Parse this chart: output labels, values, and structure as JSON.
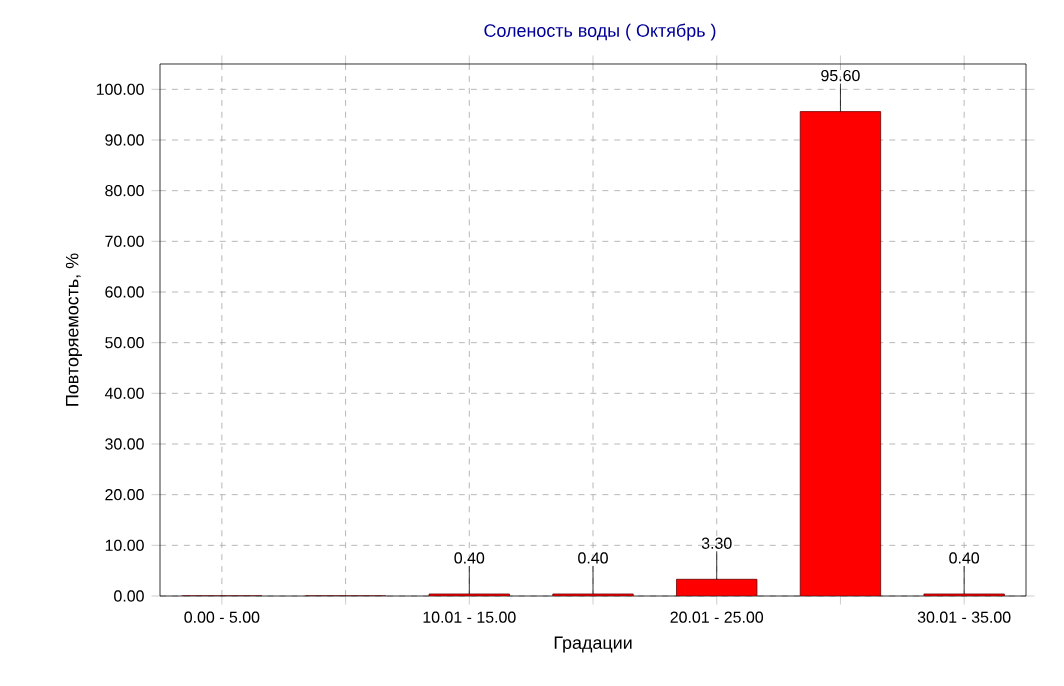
{
  "chart_data": {
    "type": "bar",
    "title": "Соленость воды    ( Октябрь )",
    "xlabel": "Градации",
    "ylabel": "Повторяемость, %",
    "categories": [
      "0.00 - 5.00",
      null,
      "10.01 - 15.00",
      null,
      "20.01 - 25.00",
      null,
      "30.01 - 35.00"
    ],
    "values": [
      0,
      0,
      0.4,
      0.4,
      3.3,
      95.6,
      0.4
    ],
    "value_labels": [
      null,
      null,
      "0.40",
      "0.40",
      "3.30",
      "95.60",
      "0.40"
    ],
    "color": "#ff0000",
    "ylim": [
      0,
      105
    ],
    "yticks": [
      {
        "value": 0,
        "label": "0.00"
      },
      {
        "value": 10,
        "label": "10.00"
      },
      {
        "value": 20,
        "label": "20.00"
      },
      {
        "value": 30,
        "label": "30.00"
      },
      {
        "value": 40,
        "label": "40.00"
      },
      {
        "value": 50,
        "label": "50.00"
      },
      {
        "value": 60,
        "label": "60.00"
      },
      {
        "value": 70,
        "label": "70.00"
      },
      {
        "value": 80,
        "label": "80.00"
      },
      {
        "value": 90,
        "label": "90.00"
      },
      {
        "value": 100,
        "label": "100.00"
      }
    ],
    "grid": true
  }
}
